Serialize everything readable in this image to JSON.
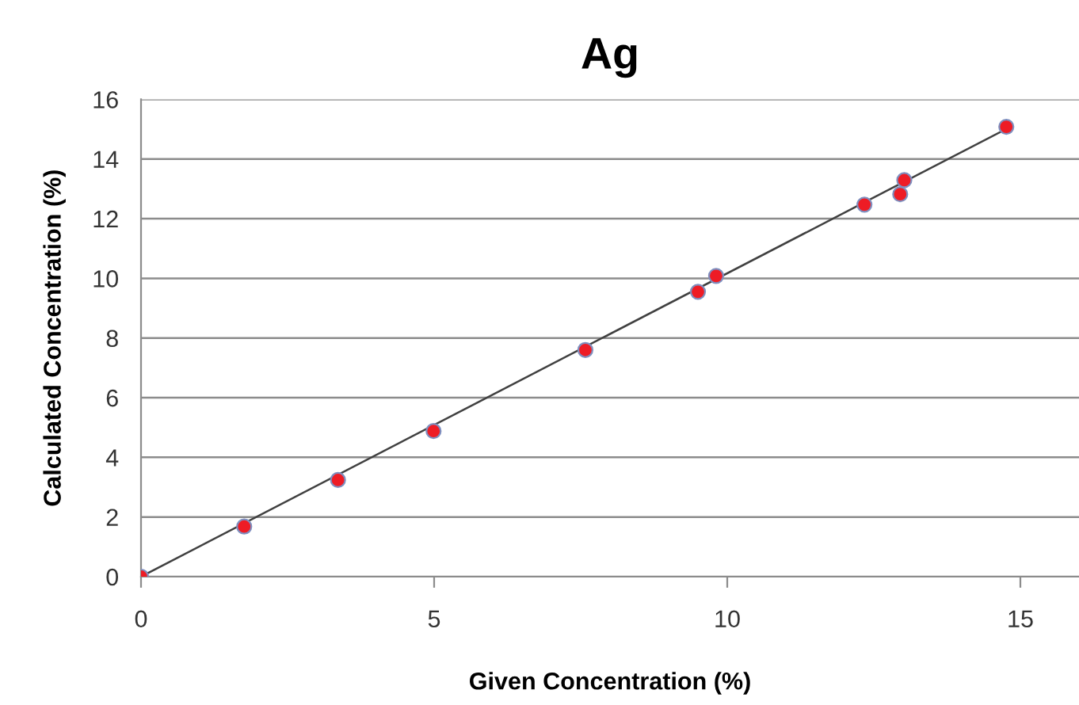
{
  "chart_data": {
    "type": "scatter",
    "title": "Ag",
    "xlabel": "Given Concentration (%)",
    "ylabel": "Calculated Concentration (%)",
    "xlim": [
      0,
      16
    ],
    "xticks": [
      0,
      5,
      10,
      15
    ],
    "ylim": [
      0,
      16
    ],
    "yticks": [
      0,
      2,
      4,
      6,
      8,
      10,
      12,
      14,
      16
    ],
    "grid": "y",
    "legend": false,
    "series": [
      {
        "type": "line",
        "color": "#404040",
        "marker": "none",
        "line_style": "solid",
        "x": [
          0,
          14.8
        ],
        "values": [
          0,
          15.05
        ]
      },
      {
        "color": "#ee1c25",
        "marker": "circle",
        "x": [
          0,
          1.76,
          3.36,
          4.99,
          7.58,
          9.5,
          9.81,
          12.34,
          12.95,
          13.02,
          14.76
        ],
        "values": [
          0,
          1.68,
          3.24,
          4.88,
          7.6,
          9.55,
          10.08,
          12.47,
          12.82,
          13.29,
          15.08
        ]
      }
    ]
  }
}
